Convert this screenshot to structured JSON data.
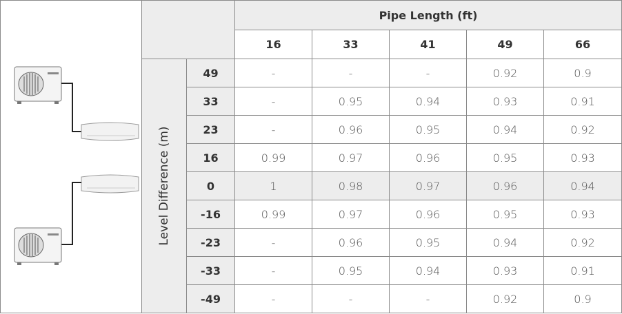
{
  "table": {
    "title": "Pipe Length (ft)",
    "side_label": "Level Difference (m)",
    "columns": [
      16,
      33,
      41,
      49,
      66
    ],
    "rows": [
      {
        "label": 49,
        "values": [
          "-",
          "-",
          "-",
          0.92,
          0.9
        ]
      },
      {
        "label": 33,
        "values": [
          "-",
          0.95,
          0.94,
          0.93,
          0.91
        ]
      },
      {
        "label": 23,
        "values": [
          "-",
          0.96,
          0.95,
          0.94,
          0.92
        ]
      },
      {
        "label": 16,
        "values": [
          0.99,
          0.97,
          0.96,
          0.95,
          0.93
        ]
      },
      {
        "label": 0,
        "values": [
          1,
          0.98,
          0.97,
          0.96,
          0.94
        ]
      },
      {
        "label": -16,
        "values": [
          0.99,
          0.97,
          0.96,
          0.95,
          0.93
        ]
      },
      {
        "label": -23,
        "values": [
          "-",
          0.96,
          0.95,
          0.94,
          0.92
        ]
      },
      {
        "label": -33,
        "values": [
          "-",
          0.95,
          0.94,
          0.93,
          0.91
        ]
      },
      {
        "label": -49,
        "values": [
          "-",
          "-",
          "-",
          0.92,
          0.9
        ]
      }
    ]
  }
}
